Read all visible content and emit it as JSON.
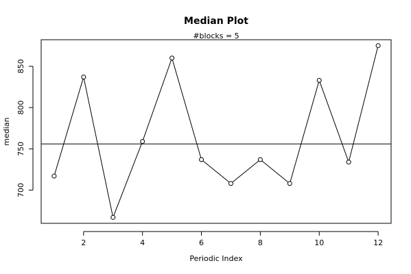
{
  "chart_data": {
    "type": "line",
    "title": "Median Plot",
    "subtitle": "#blocks =  5",
    "xlabel": "Periodic Index",
    "ylabel": "median",
    "x": [
      1,
      2,
      3,
      4,
      5,
      6,
      7,
      8,
      9,
      10,
      11,
      12
    ],
    "values": [
      717,
      837,
      667,
      759,
      860,
      737,
      708,
      737,
      708,
      833,
      734,
      875
    ],
    "reference_line": 756,
    "xlim": [
      0.56,
      12.44
    ],
    "ylim": [
      659.8,
      882.2
    ],
    "x_ticks": [
      2,
      4,
      6,
      8,
      10,
      12
    ],
    "y_ticks": [
      700,
      750,
      800,
      850
    ],
    "grid": false,
    "markers": "open-circle",
    "colors": {
      "line": "#000000",
      "marker_fill": "#ffffff",
      "background": "#ffffff"
    }
  }
}
